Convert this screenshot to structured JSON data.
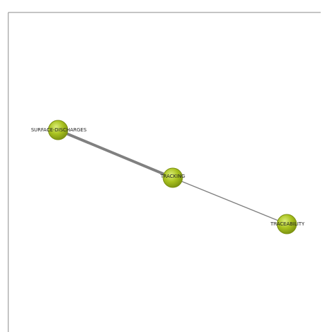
{
  "graph": {
    "nodes": [
      {
        "id": "surface-discharges",
        "label": "SURFACE-DISCHARGES"
      },
      {
        "id": "tracking",
        "label": "TRACKING"
      },
      {
        "id": "traceability",
        "label": "TRACEABILITY"
      }
    ],
    "edges": [
      {
        "source": "surface-discharges",
        "target": "tracking",
        "weight": "strong"
      },
      {
        "source": "tracking",
        "target": "traceability",
        "weight": "weak"
      }
    ]
  },
  "colors": {
    "node_fill": "#a8c21c",
    "node_stroke": "#7a8f10",
    "node_highlight": "#d8ea70",
    "edge": "#808080",
    "frame": "#8a8a8a"
  }
}
